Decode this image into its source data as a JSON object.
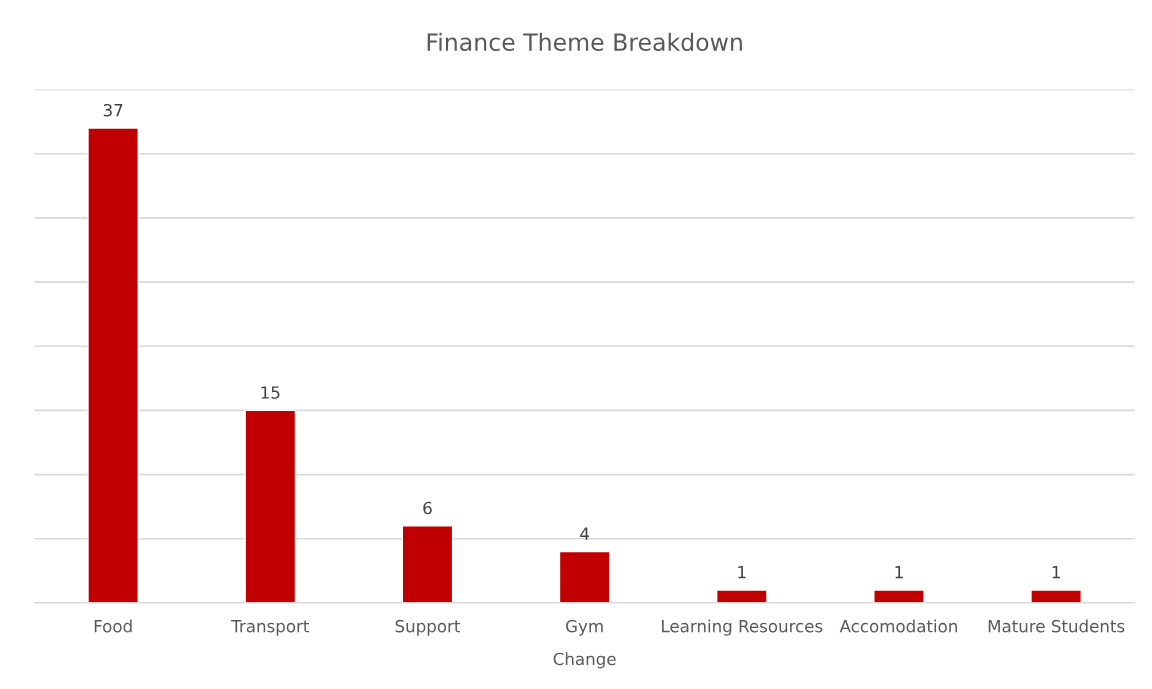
{
  "chart_data": {
    "type": "bar",
    "title": "Finance Theme Breakdown",
    "xlabel": "Change",
    "categories": [
      "Food",
      "Transport",
      "Support",
      "Gym",
      "Learning Resources",
      "Accomodation",
      "Mature Students"
    ],
    "values": [
      37,
      15,
      6,
      4,
      1,
      1,
      1
    ],
    "color": "#c00000",
    "ylim": [
      0,
      40
    ],
    "yticks": [
      {
        "value": 0,
        "label": null
      },
      {
        "value": 5,
        "label": null
      },
      {
        "value": 10,
        "label": null
      },
      {
        "value": 15,
        "label": null
      },
      {
        "value": 20,
        "label": null
      },
      {
        "value": 25,
        "label": null
      },
      {
        "value": 30,
        "label": null
      },
      {
        "value": 35,
        "label": null
      },
      {
        "value": 40,
        "label": null
      }
    ],
    "tick_labels": "x",
    "grid": "y",
    "data_labels": true,
    "legend": false
  }
}
